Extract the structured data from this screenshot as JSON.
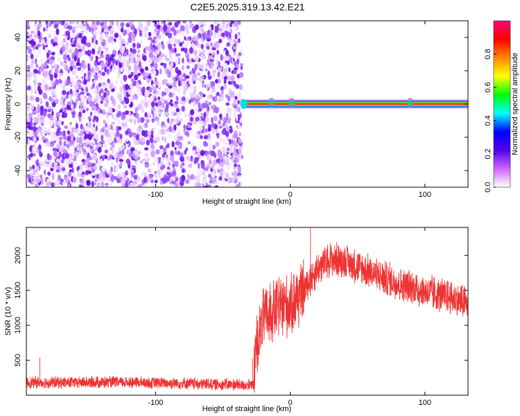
{
  "title": "C2E5.2025.319.13.42.E21",
  "chart_data": [
    {
      "type": "heatmap",
      "xlabel": "Height of straight line (km)",
      "ylabel": "Frequency (Hz)",
      "xlim": [
        -196,
        132
      ],
      "ylim": [
        -50,
        50
      ],
      "xticks": [
        -100,
        0,
        100
      ],
      "yticks": [
        -40,
        -20,
        0,
        20,
        40
      ],
      "colorbar": {
        "label": "Normalized spectral amplitude",
        "range": [
          0,
          1
        ],
        "ticks": [
          0.0,
          0.2,
          0.4,
          0.6,
          0.8
        ],
        "colors": [
          "#ffffff",
          "#cc66ff",
          "#5500ee",
          "#0000ff",
          "#00ffff",
          "#00ff00",
          "#ffff00",
          "#ff8800",
          "#ff0000",
          "#ff0077"
        ]
      },
      "noise_region_x": [
        -196,
        -36
      ],
      "signal": {
        "x_start": -36,
        "x_end": 132,
        "frequency_hz": 0,
        "bumps_x": [
          -14,
          1,
          89
        ]
      }
    },
    {
      "type": "line",
      "xlabel": "Height of straight line (km)",
      "ylabel": "SNR (10 * v/v)",
      "xlim": [
        -196,
        132
      ],
      "ylim": [
        0,
        2400
      ],
      "xticks": [
        -100,
        0,
        100
      ],
      "yticks": [
        500,
        1000,
        1500,
        2000
      ],
      "color": "#ee3333",
      "envelope": [
        {
          "x": -196,
          "y": 180
        },
        {
          "x": -120,
          "y": 185
        },
        {
          "x": -60,
          "y": 160
        },
        {
          "x": -27,
          "y": 140
        },
        {
          "x": -26,
          "y": 650
        },
        {
          "x": -20,
          "y": 1100
        },
        {
          "x": -10,
          "y": 1250
        },
        {
          "x": 0,
          "y": 1300
        },
        {
          "x": 10,
          "y": 1500
        },
        {
          "x": 20,
          "y": 1800
        },
        {
          "x": 30,
          "y": 1950
        },
        {
          "x": 40,
          "y": 1920
        },
        {
          "x": 60,
          "y": 1750
        },
        {
          "x": 80,
          "y": 1600
        },
        {
          "x": 100,
          "y": 1480
        },
        {
          "x": 120,
          "y": 1390
        },
        {
          "x": 132,
          "y": 1300
        }
      ],
      "spikes": [
        {
          "x": 15,
          "y": 2400
        },
        {
          "x": -28,
          "y": 530
        },
        {
          "x": -186,
          "y": 540
        }
      ]
    }
  ]
}
